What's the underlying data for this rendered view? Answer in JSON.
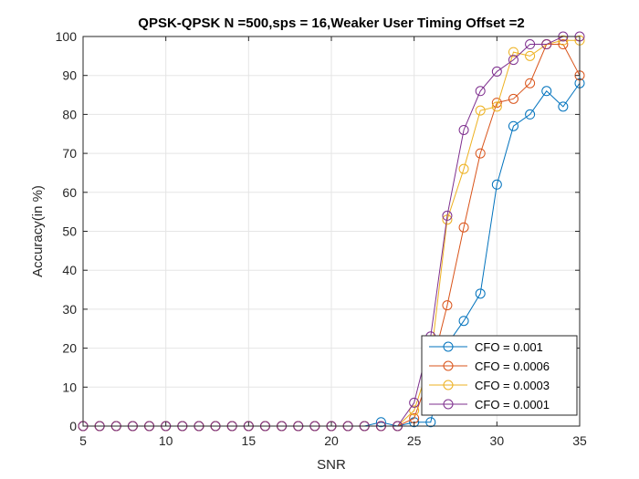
{
  "chart_data": {
    "type": "line",
    "title": "QPSK-QPSK N =500,sps = 16,Weaker User Timing Offset =2",
    "xlabel": "SNR",
    "ylabel": "Accuracy(in %)",
    "xlim": [
      5,
      35
    ],
    "ylim": [
      0,
      100
    ],
    "xticks": [
      "5",
      "10",
      "15",
      "20",
      "25",
      "30",
      "35"
    ],
    "yticks": [
      "0",
      "10",
      "20",
      "30",
      "40",
      "50",
      "60",
      "70",
      "80",
      "90",
      "100"
    ],
    "grid": true,
    "legend_position": "bottom-right",
    "marker": "circle",
    "x": [
      5,
      6,
      7,
      8,
      9,
      10,
      11,
      12,
      13,
      14,
      15,
      16,
      17,
      18,
      19,
      20,
      21,
      22,
      23,
      24,
      25,
      26,
      27,
      28,
      29,
      30,
      31,
      32,
      33,
      34,
      35
    ],
    "series": [
      {
        "name": "CFO = 0.001",
        "color": "#0072BD",
        "values": [
          0,
          0,
          0,
          0,
          0,
          0,
          0,
          0,
          0,
          0,
          0,
          0,
          0,
          0,
          0,
          0,
          0,
          0,
          1,
          0,
          1,
          1,
          21,
          27,
          34,
          62,
          77,
          80,
          86,
          82,
          88
        ]
      },
      {
        "name": "CFO = 0.0006",
        "color": "#D95319",
        "values": [
          0,
          0,
          0,
          0,
          0,
          0,
          0,
          0,
          0,
          0,
          0,
          0,
          0,
          0,
          0,
          0,
          0,
          0,
          0,
          0,
          2,
          14,
          31,
          51,
          70,
          83,
          84,
          88,
          98,
          98,
          90
        ]
      },
      {
        "name": "CFO = 0.0003",
        "color": "#EDB120",
        "values": [
          0,
          0,
          0,
          0,
          0,
          0,
          0,
          0,
          0,
          0,
          0,
          0,
          0,
          0,
          0,
          0,
          0,
          0,
          0,
          0,
          4,
          17,
          53,
          66,
          81,
          82,
          96,
          95,
          98,
          99,
          99
        ]
      },
      {
        "name": "CFO = 0.0001",
        "color": "#7E2F8E",
        "values": [
          0,
          0,
          0,
          0,
          0,
          0,
          0,
          0,
          0,
          0,
          0,
          0,
          0,
          0,
          0,
          0,
          0,
          0,
          0,
          0,
          6,
          23,
          54,
          76,
          86,
          91,
          94,
          98,
          98,
          100,
          100
        ]
      }
    ]
  }
}
